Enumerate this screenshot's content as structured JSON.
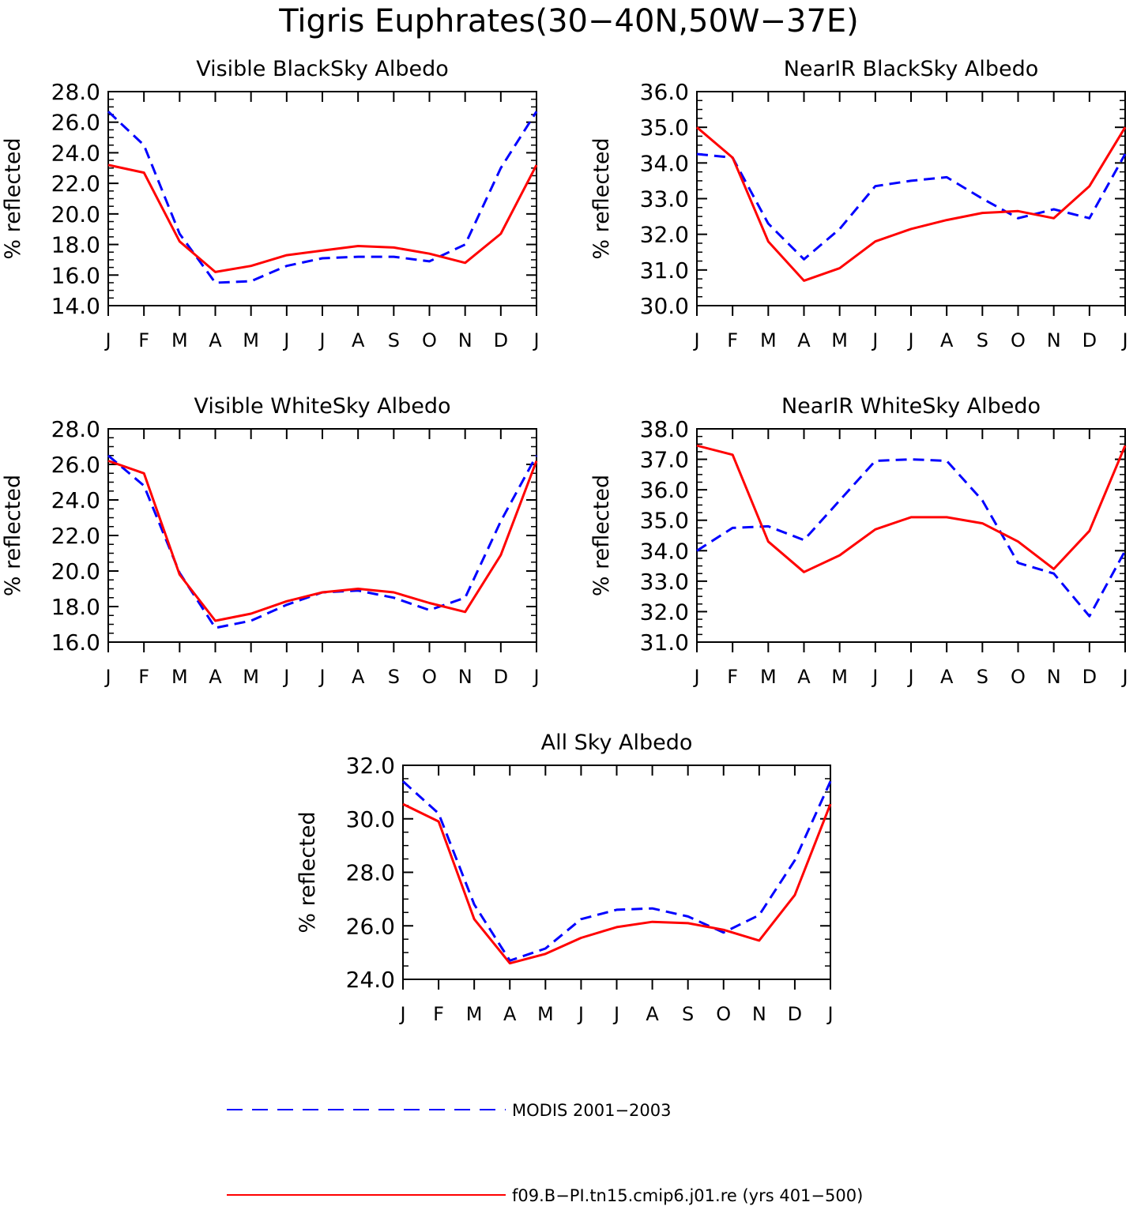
{
  "figure": {
    "title": "Tigris Euphrates(30−40N,50W−37E)"
  },
  "colors": {
    "modis": "#0000ff",
    "model": "#ff0000",
    "axes": "#000000"
  },
  "legend": {
    "placement": "bottom-center",
    "entries": [
      {
        "label": "MODIS 2001−2003",
        "style": "dashed",
        "color": "#0000ff"
      },
      {
        "label": "f09.B−PI.tn15.cmip6.j01.re (yrs 401−500)",
        "style": "solid",
        "color": "#ff0000"
      }
    ]
  },
  "chart_data": [
    {
      "type": "line",
      "title": "Visible BlackSky Albedo",
      "ylabel": "% reflected",
      "xlabel": "",
      "categories": [
        "J",
        "F",
        "M",
        "A",
        "M",
        "J",
        "J",
        "A",
        "S",
        "O",
        "N",
        "D",
        "J"
      ],
      "ylim": [
        14.0,
        28.0
      ],
      "yticks": [
        "14.0",
        "16.0",
        "18.0",
        "20.0",
        "22.0",
        "24.0",
        "26.0",
        "28.0"
      ],
      "grid": false,
      "series": [
        {
          "name": "MODIS 2001−2003",
          "style": "dashed",
          "color": "#0000ff",
          "values": [
            26.7,
            24.5,
            18.7,
            15.5,
            15.6,
            16.6,
            17.1,
            17.2,
            17.2,
            16.9,
            18.0,
            23.0,
            26.7
          ]
        },
        {
          "name": "f09.B−PI.tn15.cmip6.j01.re (yrs 401−500)",
          "style": "solid",
          "color": "#ff0000",
          "values": [
            23.2,
            22.7,
            18.2,
            16.2,
            16.6,
            17.3,
            17.6,
            17.9,
            17.8,
            17.4,
            16.8,
            18.7,
            23.2
          ]
        }
      ]
    },
    {
      "type": "line",
      "title": "NearIR BlackSky Albedo",
      "ylabel": "% reflected",
      "xlabel": "",
      "categories": [
        "J",
        "F",
        "M",
        "A",
        "M",
        "J",
        "J",
        "A",
        "S",
        "O",
        "N",
        "D",
        "J"
      ],
      "ylim": [
        30.0,
        36.0
      ],
      "yticks": [
        "30.0",
        "31.0",
        "32.0",
        "33.0",
        "34.0",
        "35.0",
        "36.0"
      ],
      "grid": false,
      "series": [
        {
          "name": "MODIS 2001−2003",
          "style": "dashed",
          "color": "#0000ff",
          "values": [
            34.25,
            34.15,
            32.3,
            31.3,
            32.15,
            33.35,
            33.5,
            33.6,
            33.0,
            32.45,
            32.7,
            32.45,
            34.25
          ]
        },
        {
          "name": "f09.B−PI.tn15.cmip6.j01.re (yrs 401−500)",
          "style": "solid",
          "color": "#ff0000",
          "values": [
            35.0,
            34.15,
            31.8,
            30.7,
            31.05,
            31.8,
            32.15,
            32.4,
            32.6,
            32.65,
            32.45,
            33.35,
            35.0
          ]
        }
      ]
    },
    {
      "type": "line",
      "title": "Visible WhiteSky Albedo",
      "ylabel": "% reflected",
      "xlabel": "",
      "categories": [
        "J",
        "F",
        "M",
        "A",
        "M",
        "J",
        "J",
        "A",
        "S",
        "O",
        "N",
        "D",
        "J"
      ],
      "ylim": [
        16.0,
        28.0
      ],
      "yticks": [
        "16.0",
        "18.0",
        "20.0",
        "22.0",
        "24.0",
        "26.0",
        "28.0"
      ],
      "grid": false,
      "series": [
        {
          "name": "MODIS 2001−2003",
          "style": "dashed",
          "color": "#0000ff",
          "values": [
            26.5,
            24.8,
            19.9,
            16.8,
            17.2,
            18.1,
            18.8,
            18.9,
            18.5,
            17.8,
            18.5,
            22.8,
            26.5
          ]
        },
        {
          "name": "f09.B−PI.tn15.cmip6.j01.re (yrs 401−500)",
          "style": "solid",
          "color": "#ff0000",
          "values": [
            26.2,
            25.5,
            19.8,
            17.2,
            17.6,
            18.3,
            18.8,
            19.0,
            18.8,
            18.2,
            17.7,
            20.9,
            26.2
          ]
        }
      ]
    },
    {
      "type": "line",
      "title": "NearIR WhiteSky Albedo",
      "ylabel": "% reflected",
      "xlabel": "",
      "categories": [
        "J",
        "F",
        "M",
        "A",
        "M",
        "J",
        "J",
        "A",
        "S",
        "O",
        "N",
        "D",
        "J"
      ],
      "ylim": [
        31.0,
        38.0
      ],
      "yticks": [
        "31.0",
        "32.0",
        "33.0",
        "34.0",
        "35.0",
        "36.0",
        "37.0",
        "38.0"
      ],
      "grid": false,
      "series": [
        {
          "name": "MODIS 2001−2003",
          "style": "dashed",
          "color": "#0000ff",
          "values": [
            34.0,
            34.75,
            34.8,
            34.35,
            35.65,
            36.95,
            37.0,
            36.95,
            35.65,
            33.6,
            33.25,
            31.85,
            34.0
          ]
        },
        {
          "name": "f09.B−PI.tn15.cmip6.j01.re (yrs 401−500)",
          "style": "solid",
          "color": "#ff0000",
          "values": [
            37.45,
            37.15,
            34.3,
            33.3,
            33.85,
            34.7,
            35.1,
            35.1,
            34.9,
            34.3,
            33.4,
            34.65,
            37.45
          ]
        }
      ]
    },
    {
      "type": "line",
      "title": "All Sky Albedo",
      "ylabel": "% reflected",
      "xlabel": "",
      "categories": [
        "J",
        "F",
        "M",
        "A",
        "M",
        "J",
        "J",
        "A",
        "S",
        "O",
        "N",
        "D",
        "J"
      ],
      "ylim": [
        24.0,
        32.0
      ],
      "yticks": [
        "24.0",
        "26.0",
        "28.0",
        "30.0",
        "32.0"
      ],
      "grid": false,
      "series": [
        {
          "name": "MODIS 2001−2003",
          "style": "dashed",
          "color": "#0000ff",
          "values": [
            31.4,
            30.2,
            26.8,
            24.7,
            25.15,
            26.25,
            26.6,
            26.65,
            26.35,
            25.75,
            26.4,
            28.45,
            31.4
          ]
        },
        {
          "name": "f09.B−PI.tn15.cmip6.j01.re (yrs 401−500)",
          "style": "solid",
          "color": "#ff0000",
          "values": [
            30.55,
            29.9,
            26.25,
            24.6,
            24.95,
            25.55,
            25.95,
            26.15,
            26.1,
            25.85,
            25.45,
            27.15,
            30.55
          ]
        }
      ]
    }
  ]
}
